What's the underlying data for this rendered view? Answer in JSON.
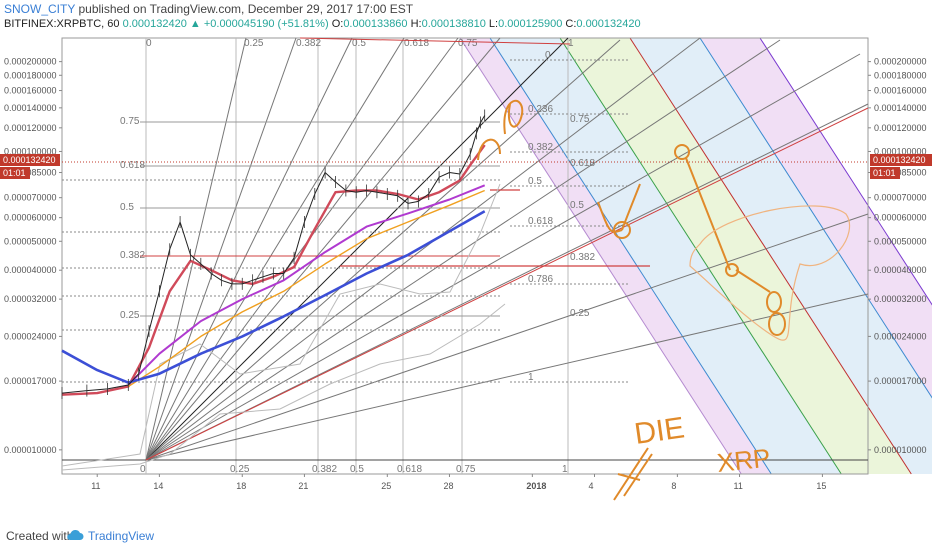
{
  "header": {
    "author": "SNOW_CITY",
    "published": "published on TradingView.com, December 29, 2017 17:00 EST",
    "symbol": "BITFINEX:XRPBTC, 60",
    "last": "0.000132420",
    "change": "+0.000045190 (+51.81%)",
    "o_label": "O:",
    "o_val": "0.000133860",
    "h_label": "H:",
    "h_val": "0.000138810",
    "l_label": "L:",
    "l_val": "0.000125900",
    "c_label": "C:",
    "c_val": "0.000132420"
  },
  "footer": {
    "created_with": "Created with",
    "brand": "TradingView"
  },
  "price_tag": {
    "price": "0.000132420",
    "countdown": "01:01",
    "color": "#c0392b"
  },
  "colors": {
    "price_line": "#c0392b",
    "ma_fast": "#d04a5a",
    "ma_mid": "#b03ad0",
    "ma_slow": "#3c4fd6",
    "ma_orange": "#f0a020",
    "annotation": "#e08a2a",
    "channel_green": "#e8f3d4",
    "channel_blue": "#dcebf7",
    "channel_purple": "#efd9f3"
  },
  "annotation_text": {
    "word1": "DIE",
    "word2": "XRP"
  },
  "chart_data": {
    "type": "line",
    "y_scale": "log",
    "ylim": [
      8.3e-06,
      0.00024
    ],
    "y_ticks": [
      "0.000200000",
      "0.000180000",
      "0.000160000",
      "0.000140000",
      "0.000120000",
      "0.000100000",
      "0.000085000",
      "0.000070000",
      "0.000060000",
      "0.000050000",
      "0.000040000",
      "0.000032000",
      "0.000024000",
      "0.000017000",
      "0.000010000"
    ],
    "x_ticks": [
      {
        "label": "11",
        "day": 11
      },
      {
        "label": "14",
        "day": 14
      },
      {
        "label": "18",
        "day": 18
      },
      {
        "label": "21",
        "day": 21
      },
      {
        "label": "25",
        "day": 25
      },
      {
        "label": "28",
        "day": 28
      },
      {
        "label": "2018",
        "day": 32
      },
      {
        "label": "4",
        "day": 35
      },
      {
        "label": "8",
        "day": 39
      },
      {
        "label": "11",
        "day": 42
      },
      {
        "label": "15",
        "day": 46
      }
    ],
    "xlim_day": [
      9.3,
      48.2
    ],
    "price_series": {
      "name": "",
      "x_day": [
        9.3,
        10.5,
        11.5,
        12.5,
        13.0,
        13.5,
        14.0,
        14.5,
        15.0,
        15.5,
        16.0,
        16.5,
        17.0,
        17.5,
        18.0,
        18.5,
        19.0,
        19.5,
        20.0,
        20.5,
        21.0,
        21.5,
        22.0,
        22.5,
        23.0,
        23.5,
        24.0,
        24.5,
        25.0,
        25.5,
        26.0,
        26.5,
        27.0,
        27.5,
        28.0,
        28.5,
        29.0,
        29.3,
        29.5,
        29.7
      ],
      "values": [
        1.55e-05,
        1.58e-05,
        1.6e-05,
        1.65e-05,
        1.8e-05,
        2.5e-05,
        3.4e-05,
        4.7e-05,
        5.8e-05,
        4.5e-05,
        4.2e-05,
        3.9e-05,
        3.7e-05,
        3.6e-05,
        3.6e-05,
        3.7e-05,
        3.8e-05,
        3.9e-05,
        3.9e-05,
        4.4e-05,
        5.8e-05,
        7.2e-05,
        8.5e-05,
        7.9e-05,
        7.4e-05,
        7.3e-05,
        7.4e-05,
        7.3e-05,
        7.2e-05,
        7.1e-05,
        6.7e-05,
        6.8e-05,
        7.2e-05,
        8.2e-05,
        8.5e-05,
        8.4e-05,
        9.8e-05,
        0.000115,
        0.000125,
        0.000132
      ]
    },
    "ma_series": [
      {
        "key": "ma_fast",
        "x_day": [
          9.3,
          11.0,
          12.5,
          13.5,
          14.5,
          15.5,
          16.5,
          17.5,
          18.5,
          19.5,
          20.5,
          21.5,
          22.5,
          23.5,
          24.5,
          25.5,
          26.5,
          27.5,
          28.5,
          29.0,
          29.7
        ],
        "values": [
          1.53e-05,
          1.55e-05,
          1.63e-05,
          2.2e-05,
          3.4e-05,
          4.3e-05,
          4e-05,
          3.7e-05,
          3.6e-05,
          3.8e-05,
          4.1e-05,
          5.5e-05,
          7.3e-05,
          7.4e-05,
          7.4e-05,
          7.2e-05,
          6.9e-05,
          7.3e-05,
          8e-05,
          9e-05,
          0.000105
        ]
      },
      {
        "key": "ma_mid",
        "x_day": [
          12.5,
          14.0,
          16.0,
          18.0,
          20.0,
          22.0,
          24.0,
          26.0,
          28.0,
          29.7
        ],
        "values": [
          1.65e-05,
          2.1e-05,
          2.7e-05,
          3.2e-05,
          3.7e-05,
          4.6e-05,
          5.6e-05,
          6.2e-05,
          6.9e-05,
          7.7e-05
        ]
      },
      {
        "key": "ma_orange",
        "x_day": [
          12.5,
          14.0,
          16.0,
          18.0,
          20.0,
          22.0,
          24.0,
          26.0,
          28.0,
          29.7
        ],
        "values": [
          1.63e-05,
          1.9e-05,
          2.4e-05,
          2.9e-05,
          3.4e-05,
          4.2e-05,
          5.1e-05,
          5.8e-05,
          6.6e-05,
          7.4e-05
        ]
      },
      {
        "key": "ma_slow",
        "x_day": [
          9.3,
          11.0,
          12.5,
          14.0,
          16.0,
          18.0,
          20.0,
          22.0,
          24.0,
          26.0,
          28.0,
          29.7
        ],
        "values": [
          2.15e-05,
          1.85e-05,
          1.68e-05,
          1.8e-05,
          2.1e-05,
          2.4e-05,
          2.8e-05,
          3.3e-05,
          3.9e-05,
          4.5e-05,
          5.4e-05,
          6.3e-05
        ]
      }
    ],
    "fib_timezones_bottom": [
      "0",
      "0.25",
      "0.382",
      "0.5",
      "0.618",
      "0.75",
      "1"
    ],
    "fib_timezones_top": [
      "0",
      "0.25",
      "0.382",
      "0.5",
      "0.618",
      "0.75",
      "1"
    ],
    "fib_levels_left": [
      "0.75",
      "0.618",
      "0.5",
      "0.382",
      "0.25"
    ],
    "fib_levels_right": [
      "0",
      "0.236",
      "0.382",
      "0.5",
      "0.618",
      "0.786",
      "1"
    ],
    "fib_channel_levels": [
      "0.75",
      "0.618",
      "0.5",
      "0.382",
      "0.25"
    ]
  }
}
